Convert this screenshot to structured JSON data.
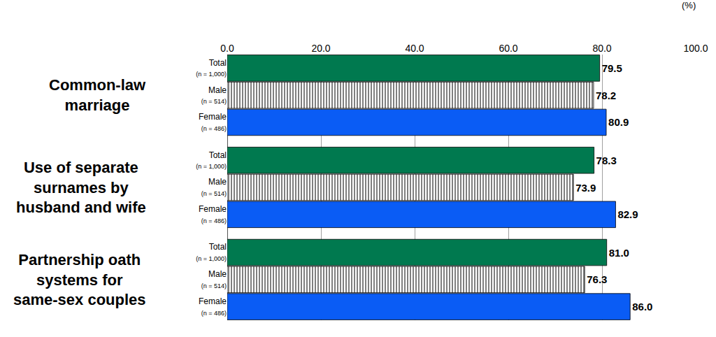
{
  "chart_data": {
    "type": "bar",
    "orientation": "horizontal",
    "x_label": "(%)",
    "categories": [
      "Common-law marriage",
      "Use of separate surnames by husband and wife",
      "Partnership oath systems for same-sex couples"
    ],
    "series": [
      {
        "name": "Total (n = 1,000)",
        "color": "#00794f",
        "values": [
          79.5,
          78.3,
          81.0
        ],
        "value_labels": [
          "79.5",
          "78.3",
          "81.0"
        ]
      },
      {
        "name": "Male (n = 514)",
        "color": "#7f7f7f",
        "marker": "striped",
        "values": [
          78.2,
          73.9,
          76.3
        ],
        "value_labels": [
          "78.2",
          "73.9",
          "76.3"
        ]
      },
      {
        "name": "Female (n = 486)",
        "color": "#0a5cf5",
        "values": [
          80.9,
          82.9,
          86.0
        ],
        "value_labels": [
          "80.9",
          "82.9",
          "86.0"
        ]
      }
    ],
    "xlim": [
      0,
      100
    ],
    "xticks": [
      {
        "value": 0,
        "label": "0.0"
      },
      {
        "value": 20,
        "label": "20.0"
      },
      {
        "value": 40,
        "label": "40.0"
      },
      {
        "value": 60,
        "label": "60.0"
      },
      {
        "value": 80,
        "label": "80.0"
      },
      {
        "value": 100,
        "label": "100.0"
      }
    ],
    "grid": true,
    "data_labels": true
  }
}
